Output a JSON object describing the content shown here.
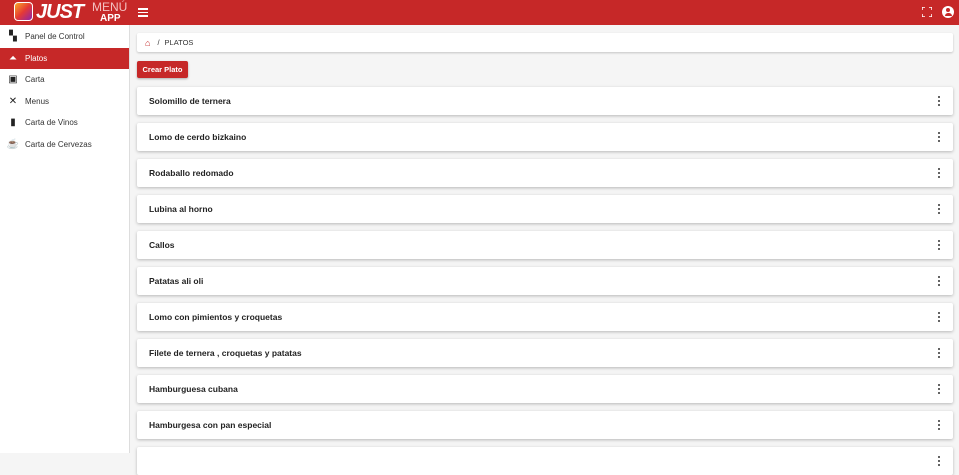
{
  "header": {
    "logo_text": "JUST MENÚ APP",
    "logo_just": "JUST",
    "logo_menu": "MENÚ",
    "logo_app": "APP",
    "color": "#c62828"
  },
  "sidebar": {
    "items": [
      {
        "label": "Panel de Control",
        "icon": "dashboard-icon",
        "active": false
      },
      {
        "label": "Platos",
        "icon": "room-service-icon",
        "active": true
      },
      {
        "label": "Carta",
        "icon": "menu-book-icon",
        "active": false
      },
      {
        "label": "Menus",
        "icon": "utensils-icon",
        "active": false
      },
      {
        "label": "Carta de Vinos",
        "icon": "wine-bottle-icon",
        "active": false
      },
      {
        "label": "Carta de Cervezas",
        "icon": "beer-mug-icon",
        "active": false
      }
    ]
  },
  "breadcrumb": {
    "separator": "/",
    "current": "PLATOS"
  },
  "actions": {
    "create_label": "Crear Plato"
  },
  "dishes": [
    "Solomillo de ternera",
    "Lomo de cerdo bizkaino",
    "Rodaballo redomado",
    "Lubina al horno",
    "Callos",
    "Patatas ali oli",
    "Lomo con pimientos y croquetas",
    "Filete de ternera , croquetas y patatas",
    "Hamburguesa cubana",
    "Hamburgesa con pan especial",
    ""
  ]
}
